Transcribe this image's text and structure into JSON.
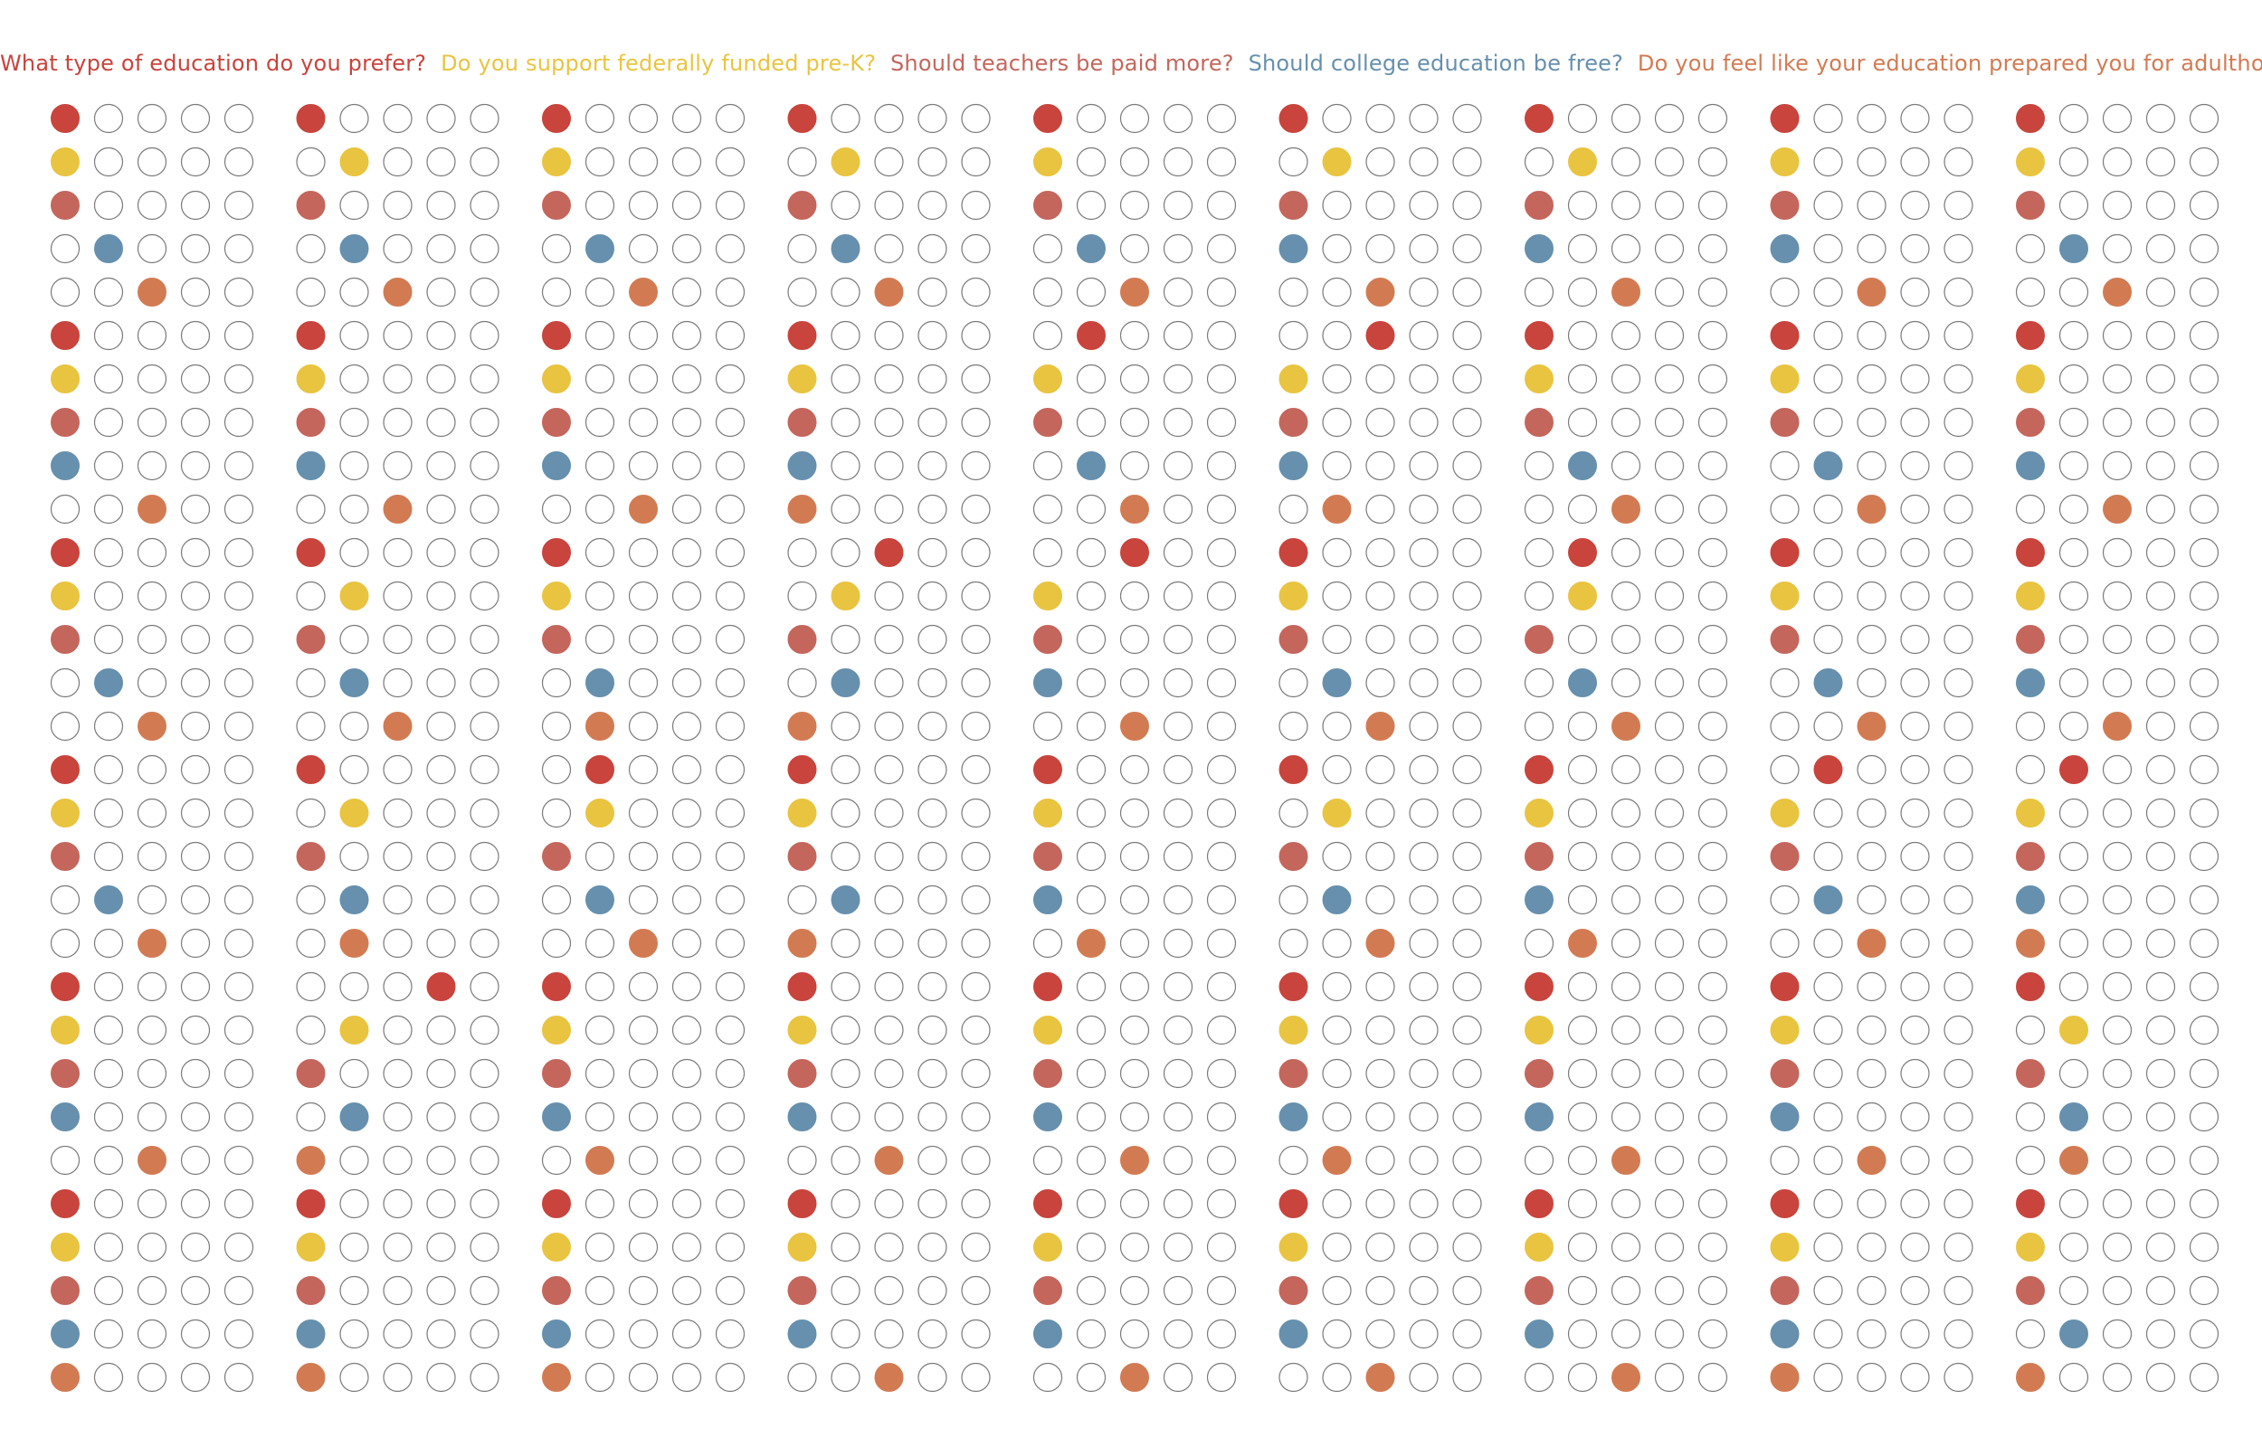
{
  "questions": [
    {
      "text": "What type of education do you prefer?",
      "color": "#c8443c"
    },
    {
      "text": "Do you support federally funded pre-K?",
      "color": "#e9c440"
    },
    {
      "text": "Should teachers be paid more?",
      "color": "#c4665c"
    },
    {
      "text": "Should college education be free?",
      "color": "#6690ad"
    },
    {
      "text": "Do you feel like your education prepared you for adulthood?",
      "color": "#d27b53"
    }
  ],
  "chart_data": {
    "type": "dot-matrix",
    "title": "",
    "options_per_question": 5,
    "panel_count": 9,
    "rows_per_panel": 30,
    "row_questions": [
      0,
      1,
      2,
      3,
      4,
      0,
      1,
      2,
      3,
      4,
      0,
      1,
      2,
      3,
      4,
      0,
      1,
      2,
      3,
      4,
      0,
      1,
      2,
      3,
      4,
      0,
      1,
      2,
      3,
      4
    ],
    "panels": [
      [
        0,
        0,
        0,
        1,
        2,
        0,
        0,
        0,
        0,
        2,
        0,
        0,
        0,
        1,
        2,
        0,
        0,
        0,
        1,
        2,
        0,
        0,
        0,
        0,
        2,
        0,
        0,
        0,
        0,
        0
      ],
      [
        0,
        1,
        0,
        1,
        2,
        0,
        0,
        0,
        0,
        2,
        0,
        1,
        0,
        1,
        2,
        0,
        1,
        0,
        1,
        1,
        3,
        1,
        0,
        1,
        0,
        0,
        0,
        0,
        0,
        0
      ],
      [
        0,
        0,
        0,
        1,
        2,
        0,
        0,
        0,
        0,
        2,
        0,
        0,
        0,
        1,
        1,
        1,
        1,
        0,
        1,
        2,
        0,
        0,
        0,
        0,
        1,
        0,
        0,
        0,
        0,
        0
      ],
      [
        0,
        1,
        0,
        1,
        2,
        0,
        0,
        0,
        0,
        0,
        2,
        1,
        0,
        1,
        0,
        0,
        0,
        0,
        1,
        0,
        0,
        0,
        0,
        0,
        2,
        0,
        0,
        0,
        0,
        2
      ],
      [
        0,
        0,
        0,
        1,
        2,
        1,
        0,
        0,
        1,
        2,
        2,
        0,
        0,
        0,
        2,
        0,
        0,
        0,
        0,
        1,
        0,
        0,
        0,
        0,
        2,
        0,
        0,
        0,
        0,
        2
      ],
      [
        0,
        1,
        0,
        0,
        2,
        2,
        0,
        0,
        0,
        1,
        0,
        0,
        0,
        1,
        2,
        0,
        1,
        0,
        1,
        2,
        0,
        0,
        0,
        0,
        1,
        0,
        0,
        0,
        0,
        2
      ],
      [
        0,
        1,
        0,
        0,
        2,
        0,
        0,
        0,
        1,
        2,
        1,
        1,
        0,
        1,
        2,
        0,
        0,
        0,
        0,
        1,
        0,
        0,
        0,
        0,
        2,
        0,
        0,
        0,
        0,
        2
      ],
      [
        0,
        0,
        0,
        0,
        2,
        0,
        0,
        0,
        1,
        2,
        0,
        0,
        0,
        1,
        2,
        1,
        0,
        0,
        1,
        2,
        0,
        0,
        0,
        0,
        2,
        0,
        0,
        0,
        0,
        0
      ],
      [
        0,
        0,
        0,
        1,
        2,
        0,
        0,
        0,
        0,
        2,
        0,
        0,
        0,
        0,
        2,
        1,
        0,
        0,
        0,
        0,
        0,
        1,
        0,
        1,
        1,
        0,
        0,
        0,
        1,
        0
      ]
    ]
  }
}
